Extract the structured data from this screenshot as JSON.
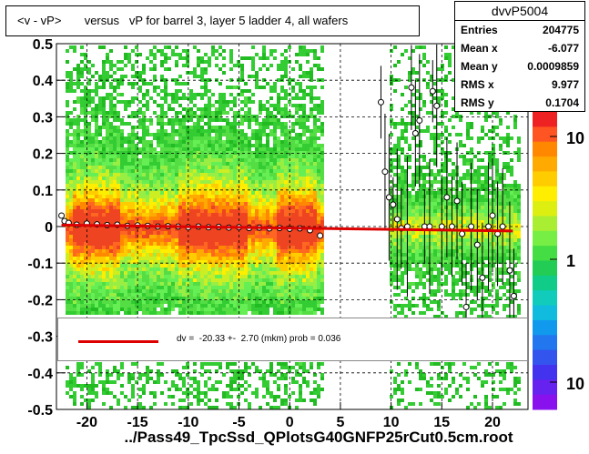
{
  "chart_data": {
    "type": "scatter",
    "title": "<v - vP>       versus   vP for barrel 3, layer 5 ladder 4, all wafers",
    "xlabel": "../Pass49_TpcSsd_QPlotsG40GNFP25rCut0.5cm.root",
    "ylabel": "",
    "xlim": [
      -23,
      23.5
    ],
    "ylim": [
      -0.5,
      0.5
    ],
    "x_ticks": [
      "-20",
      "-15",
      "-10",
      "-5",
      "0",
      "5",
      "10",
      "15",
      "20"
    ],
    "y_ticks": [
      "-0.5",
      "-0.4",
      "-0.3",
      "-0.2",
      "-0.1",
      "0",
      "0.1",
      "0.2",
      "0.3",
      "0.4",
      "0.5"
    ],
    "colorbar_ticks": [
      "10",
      "1",
      "10"
    ],
    "grid": true,
    "profile_points": [
      {
        "x": -22.5,
        "y": 0.03
      },
      {
        "x": -22.2,
        "y": 0.015
      },
      {
        "x": -21.8,
        "y": 0.01
      },
      {
        "x": -21.0,
        "y": 0.005
      },
      {
        "x": -20.0,
        "y": 0.008
      },
      {
        "x": -19.0,
        "y": 0.006
      },
      {
        "x": -18.0,
        "y": 0.004
      },
      {
        "x": -17.0,
        "y": 0.005
      },
      {
        "x": -16.0,
        "y": 0.002
      },
      {
        "x": -15.0,
        "y": 0.003
      },
      {
        "x": -14.0,
        "y": 0.002
      },
      {
        "x": -13.0,
        "y": 0.0
      },
      {
        "x": -12.0,
        "y": 0.001
      },
      {
        "x": -11.0,
        "y": 0.0
      },
      {
        "x": -10.0,
        "y": -0.002
      },
      {
        "x": -9.0,
        "y": 0.0
      },
      {
        "x": -8.0,
        "y": -0.002
      },
      {
        "x": -7.0,
        "y": -0.001
      },
      {
        "x": -6.0,
        "y": -0.003
      },
      {
        "x": -5.0,
        "y": -0.002
      },
      {
        "x": -4.0,
        "y": -0.004
      },
      {
        "x": -3.0,
        "y": -0.003
      },
      {
        "x": -2.0,
        "y": -0.005
      },
      {
        "x": -1.0,
        "y": -0.004
      },
      {
        "x": 0.0,
        "y": -0.006
      },
      {
        "x": 1.0,
        "y": -0.005
      },
      {
        "x": 2.0,
        "y": -0.01
      },
      {
        "x": 3.0,
        "y": -0.025
      },
      {
        "x": 9.0,
        "y": 0.34
      },
      {
        "x": 9.4,
        "y": 0.15
      },
      {
        "x": 9.8,
        "y": 0.08
      },
      {
        "x": 10.2,
        "y": 0.06
      },
      {
        "x": 10.6,
        "y": 0.02
      },
      {
        "x": 11.0,
        "y": -0.005
      },
      {
        "x": 11.6,
        "y": 0.0
      },
      {
        "x": 12.0,
        "y": 0.38
      },
      {
        "x": 12.4,
        "y": 0.255
      },
      {
        "x": 12.8,
        "y": 0.29
      },
      {
        "x": 13.3,
        "y": 0.0
      },
      {
        "x": 13.8,
        "y": 0.0
      },
      {
        "x": 14.1,
        "y": 0.37
      },
      {
        "x": 14.5,
        "y": 0.33
      },
      {
        "x": 15.0,
        "y": 0.0
      },
      {
        "x": 15.5,
        "y": 0.08
      },
      {
        "x": 16.0,
        "y": 0.0
      },
      {
        "x": 16.5,
        "y": 0.07
      },
      {
        "x": 17.0,
        "y": -0.02
      },
      {
        "x": 17.4,
        "y": -0.22
      },
      {
        "x": 17.9,
        "y": 0.0
      },
      {
        "x": 18.5,
        "y": -0.05
      },
      {
        "x": 19.0,
        "y": -0.14
      },
      {
        "x": 19.6,
        "y": 0.0
      },
      {
        "x": 20.0,
        "y": 0.03
      },
      {
        "x": 20.5,
        "y": -0.02
      },
      {
        "x": 21.0,
        "y": 0.0
      },
      {
        "x": 21.7,
        "y": -0.12
      },
      {
        "x": 22.1,
        "y": -0.19
      }
    ],
    "fit_line": {
      "x": [
        -22.5,
        22
      ],
      "y": [
        0.004,
        -0.012
      ]
    }
  },
  "title": "<v - vP>       versus   vP for barrel 3, layer 5 ladder 4, all wafers",
  "stats": {
    "title": "dvvP5004",
    "rows": [
      {
        "key": "Entries",
        "value": "204775"
      },
      {
        "key": "Mean x",
        "value": "-6.077"
      },
      {
        "key": "Mean y",
        "value": "0.0009859"
      },
      {
        "key": "RMS x",
        "value": "9.977"
      },
      {
        "key": "RMS y",
        "value": "0.1704"
      }
    ]
  },
  "fit_text": "dv =  -20.33 +-  2.70 (mkm) prob = 0.036",
  "xlabel": "../Pass49_TpcSsd_QPlotsG40GNFP25rCut0.5cm.root",
  "colors": {
    "fit": "#dd0000",
    "background": "#ffffff"
  }
}
